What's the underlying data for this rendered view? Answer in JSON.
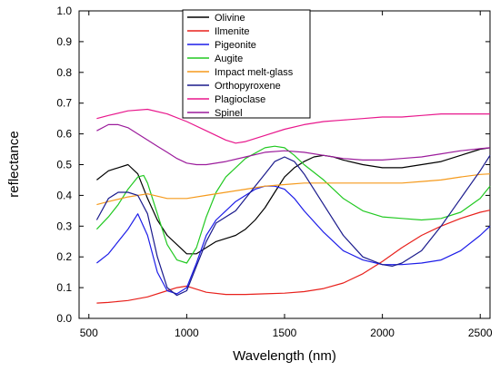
{
  "chart_data": {
    "type": "line",
    "xlabel": "Wavelength (nm)",
    "ylabel": "reflectance",
    "xlim": [
      450,
      2550
    ],
    "ylim": [
      0.0,
      1.0
    ],
    "xticks": [
      "500",
      "1000",
      "1500",
      "2000",
      "2500"
    ],
    "yticks": [
      "0.0",
      "0.1",
      "0.2",
      "0.3",
      "0.4",
      "0.5",
      "0.6",
      "0.7",
      "0.8",
      "0.9",
      "1.0"
    ],
    "legend_position": "top-center",
    "series": [
      {
        "name": "Olivine",
        "color": "#000000",
        "x": [
          540,
          600,
          650,
          700,
          750,
          800,
          850,
          900,
          950,
          1000,
          1050,
          1100,
          1150,
          1200,
          1250,
          1300,
          1350,
          1400,
          1450,
          1500,
          1550,
          1600,
          1650,
          1700,
          1750,
          1800,
          1900,
          2000,
          2100,
          2200,
          2300,
          2400,
          2500,
          2550
        ],
        "y": [
          0.45,
          0.48,
          0.49,
          0.5,
          0.47,
          0.39,
          0.32,
          0.27,
          0.24,
          0.21,
          0.21,
          0.23,
          0.25,
          0.26,
          0.27,
          0.29,
          0.32,
          0.36,
          0.41,
          0.46,
          0.49,
          0.51,
          0.525,
          0.53,
          0.525,
          0.515,
          0.5,
          0.49,
          0.49,
          0.5,
          0.51,
          0.53,
          0.55,
          0.555
        ]
      },
      {
        "name": "Ilmenite",
        "color": "#e8211c",
        "x": [
          540,
          600,
          700,
          800,
          900,
          950,
          1000,
          1050,
          1100,
          1200,
          1300,
          1400,
          1500,
          1600,
          1700,
          1800,
          1900,
          2000,
          2100,
          2200,
          2300,
          2400,
          2500,
          2550
        ],
        "y": [
          0.05,
          0.052,
          0.058,
          0.07,
          0.09,
          0.1,
          0.105,
          0.095,
          0.085,
          0.078,
          0.078,
          0.08,
          0.082,
          0.087,
          0.097,
          0.115,
          0.145,
          0.185,
          0.23,
          0.27,
          0.3,
          0.325,
          0.345,
          0.352
        ]
      },
      {
        "name": "Pigeonite",
        "color": "#1c1ce8",
        "x": [
          540,
          600,
          650,
          700,
          750,
          800,
          850,
          900,
          950,
          1000,
          1050,
          1100,
          1150,
          1200,
          1250,
          1300,
          1350,
          1400,
          1450,
          1500,
          1550,
          1600,
          1700,
          1800,
          1900,
          2000,
          2100,
          2200,
          2300,
          2400,
          2500,
          2550
        ],
        "y": [
          0.18,
          0.21,
          0.25,
          0.29,
          0.34,
          0.27,
          0.15,
          0.09,
          0.08,
          0.1,
          0.18,
          0.27,
          0.32,
          0.35,
          0.38,
          0.4,
          0.42,
          0.43,
          0.43,
          0.42,
          0.39,
          0.35,
          0.28,
          0.22,
          0.19,
          0.175,
          0.175,
          0.18,
          0.19,
          0.22,
          0.27,
          0.3
        ]
      },
      {
        "name": "Augite",
        "color": "#22c922",
        "x": [
          540,
          600,
          650,
          700,
          750,
          780,
          800,
          850,
          900,
          950,
          1000,
          1050,
          1100,
          1150,
          1200,
          1300,
          1400,
          1450,
          1500,
          1550,
          1600,
          1700,
          1800,
          1900,
          2000,
          2100,
          2200,
          2300,
          2400,
          2500,
          2550
        ],
        "y": [
          0.29,
          0.33,
          0.37,
          0.42,
          0.46,
          0.465,
          0.44,
          0.34,
          0.24,
          0.19,
          0.18,
          0.23,
          0.33,
          0.41,
          0.46,
          0.52,
          0.555,
          0.56,
          0.555,
          0.53,
          0.5,
          0.45,
          0.39,
          0.35,
          0.33,
          0.325,
          0.32,
          0.325,
          0.345,
          0.39,
          0.43
        ]
      },
      {
        "name": "Impact melt-glass",
        "color": "#f59a1c",
        "x": [
          540,
          600,
          700,
          800,
          900,
          1000,
          1100,
          1200,
          1300,
          1400,
          1500,
          1600,
          1700,
          1800,
          1900,
          2000,
          2100,
          2200,
          2300,
          2400,
          2500,
          2550
        ],
        "y": [
          0.37,
          0.38,
          0.395,
          0.405,
          0.39,
          0.39,
          0.4,
          0.41,
          0.42,
          0.43,
          0.435,
          0.44,
          0.44,
          0.44,
          0.44,
          0.44,
          0.44,
          0.445,
          0.45,
          0.46,
          0.468,
          0.47
        ]
      },
      {
        "name": "Orthopyroxene",
        "color": "#1a1a8c",
        "x": [
          540,
          600,
          650,
          700,
          750,
          800,
          850,
          900,
          950,
          1000,
          1050,
          1100,
          1150,
          1200,
          1250,
          1300,
          1350,
          1400,
          1450,
          1500,
          1550,
          1600,
          1700,
          1800,
          1900,
          2000,
          2050,
          2100,
          2200,
          2300,
          2400,
          2500,
          2550
        ],
        "y": [
          0.32,
          0.39,
          0.41,
          0.41,
          0.4,
          0.34,
          0.2,
          0.1,
          0.075,
          0.09,
          0.17,
          0.25,
          0.31,
          0.33,
          0.35,
          0.39,
          0.43,
          0.47,
          0.51,
          0.525,
          0.51,
          0.47,
          0.37,
          0.27,
          0.2,
          0.175,
          0.17,
          0.18,
          0.22,
          0.3,
          0.39,
          0.48,
          0.53
        ]
      },
      {
        "name": "Plagioclase",
        "color": "#e8178c",
        "x": [
          540,
          600,
          700,
          800,
          900,
          1000,
          1100,
          1200,
          1250,
          1300,
          1400,
          1500,
          1600,
          1700,
          1800,
          1900,
          2000,
          2100,
          2200,
          2300,
          2400,
          2500,
          2550
        ],
        "y": [
          0.65,
          0.66,
          0.675,
          0.68,
          0.665,
          0.64,
          0.61,
          0.58,
          0.57,
          0.575,
          0.595,
          0.615,
          0.63,
          0.64,
          0.645,
          0.65,
          0.655,
          0.655,
          0.66,
          0.665,
          0.665,
          0.665,
          0.665
        ]
      },
      {
        "name": "Spinel",
        "color": "#9c1c9c",
        "x": [
          540,
          600,
          650,
          700,
          750,
          800,
          850,
          900,
          950,
          1000,
          1050,
          1100,
          1200,
          1300,
          1400,
          1500,
          1600,
          1700,
          1800,
          1900,
          2000,
          2100,
          2200,
          2300,
          2400,
          2500,
          2550
        ],
        "y": [
          0.61,
          0.63,
          0.63,
          0.62,
          0.6,
          0.58,
          0.56,
          0.54,
          0.52,
          0.505,
          0.5,
          0.5,
          0.51,
          0.525,
          0.54,
          0.545,
          0.54,
          0.53,
          0.52,
          0.515,
          0.515,
          0.52,
          0.525,
          0.535,
          0.545,
          0.552,
          0.555
        ]
      }
    ]
  }
}
